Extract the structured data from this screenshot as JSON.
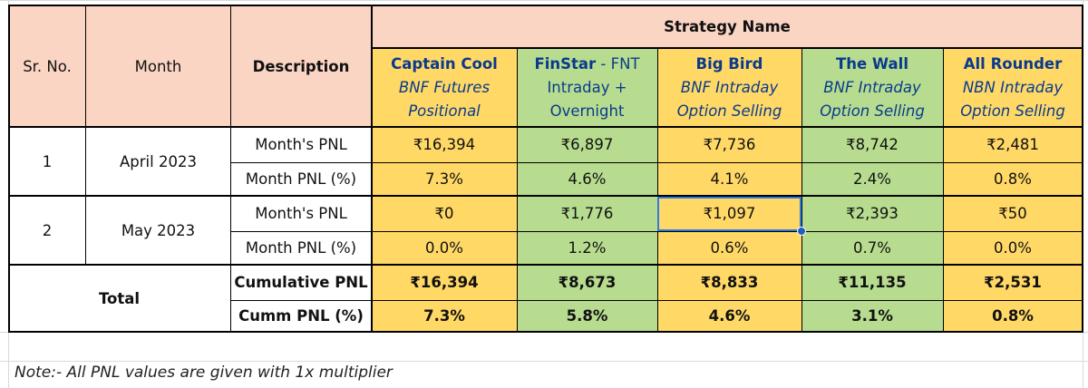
{
  "header": {
    "sr_no": "Sr. No.",
    "month": "Month",
    "description": "Description",
    "strategy_name": "Strategy Name"
  },
  "strategies": [
    {
      "name": "Captain Cool",
      "sub1": "BNF Futures",
      "sub2": "Positional"
    },
    {
      "name": "FinStar",
      "name_suffix": " - FNT",
      "sub1": "Intraday +",
      "sub2": "Overnight"
    },
    {
      "name": "Big Bird",
      "sub1": "BNF Intraday",
      "sub2": "Option Selling"
    },
    {
      "name": "The Wall",
      "sub1": "BNF Intraday",
      "sub2": "Option Selling"
    },
    {
      "name": "All Rounder",
      "sub1": "NBN Intraday",
      "sub2": "Option Selling"
    }
  ],
  "rows": [
    {
      "sr": "1",
      "month": "April 2023",
      "pnl_label": "Month's PNL",
      "pct_label": "Month PNL (%)",
      "pnl": [
        "₹16,394",
        "₹6,897",
        "₹7,736",
        "₹8,742",
        "₹2,481"
      ],
      "pct": [
        "7.3%",
        "4.6%",
        "4.1%",
        "2.4%",
        "0.8%"
      ]
    },
    {
      "sr": "2",
      "month": "May 2023",
      "pnl_label": "Month's PNL",
      "pct_label": "Month PNL (%)",
      "pnl": [
        "₹0",
        "₹1,776",
        "₹1,097",
        "₹2,393",
        "₹50"
      ],
      "pct": [
        "0.0%",
        "1.2%",
        "0.6%",
        "0.7%",
        "0.0%"
      ]
    }
  ],
  "total": {
    "label": "Total",
    "cum_label": "Cumulative PNL",
    "cum_pct_label": "Cumm PNL (%)",
    "cum": [
      "₹16,394",
      "₹8,673",
      "₹8,833",
      "₹11,135",
      "₹2,531"
    ],
    "cum_pct": [
      "7.3%",
      "5.8%",
      "4.6%",
      "3.1%",
      "0.8%"
    ]
  },
  "note": "Note:- All PNL values are given with 1x multiplier",
  "colors": {
    "header_bg": "#fbd5c4",
    "yellow": "#ffd866",
    "green": "#b7dc8f",
    "title_blue": "#0a3a8c",
    "selection": "#2f7de1"
  }
}
